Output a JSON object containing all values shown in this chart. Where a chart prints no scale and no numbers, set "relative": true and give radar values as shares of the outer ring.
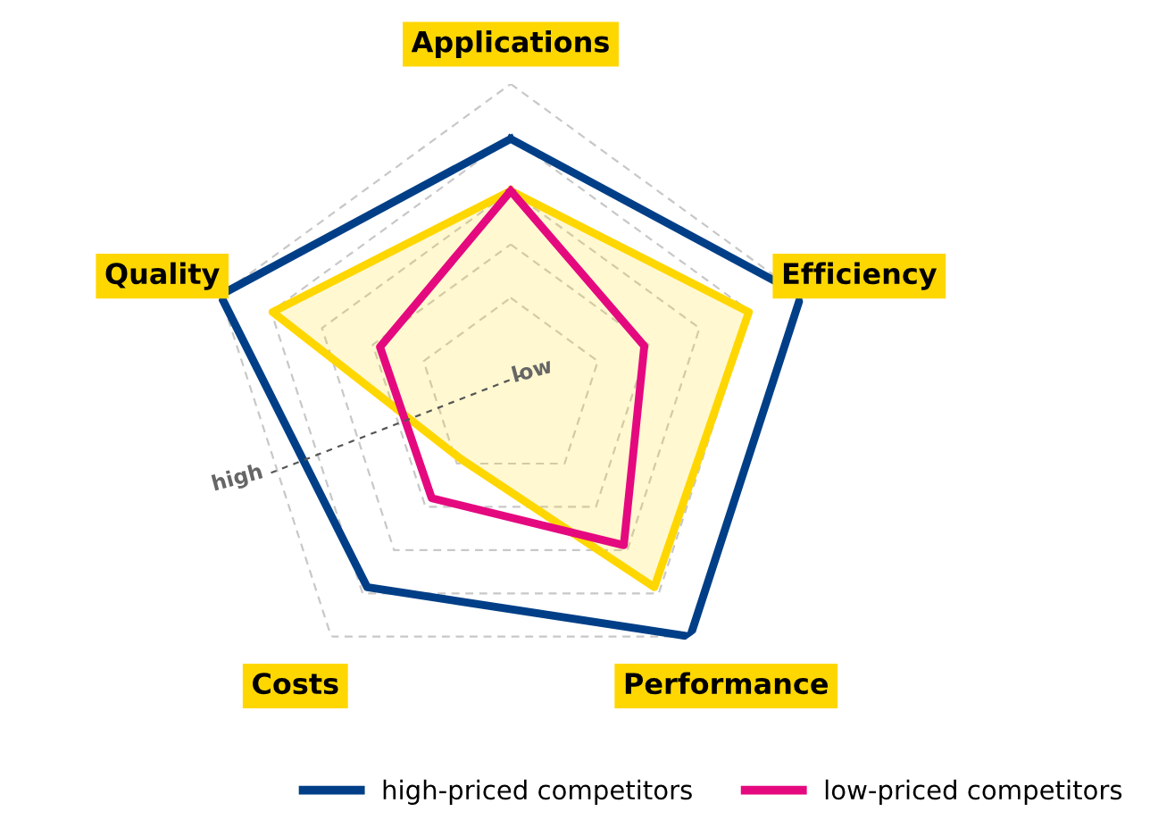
{
  "chart_data": {
    "type": "radar",
    "relative": true,
    "grid": true,
    "legend": "bottom",
    "categories": [
      "Applications",
      "Efficiency",
      "Performance",
      "Costs",
      "Quality"
    ],
    "series": [
      {
        "color": "#ffd700",
        "values": [
          0.65,
          0.82,
          0.8,
          0.28,
          0.82
        ]
      },
      {
        "name": "high-priced competitors",
        "color": "#003f87",
        "values": [
          0.82,
          1.0,
          1.0,
          0.8,
          1.0
        ]
      },
      {
        "name": "low-priced competitors",
        "color": "#e5097f",
        "values": [
          0.65,
          0.46,
          0.63,
          0.44,
          0.45
        ]
      }
    ],
    "annotations": [
      "low",
      "high"
    ]
  }
}
